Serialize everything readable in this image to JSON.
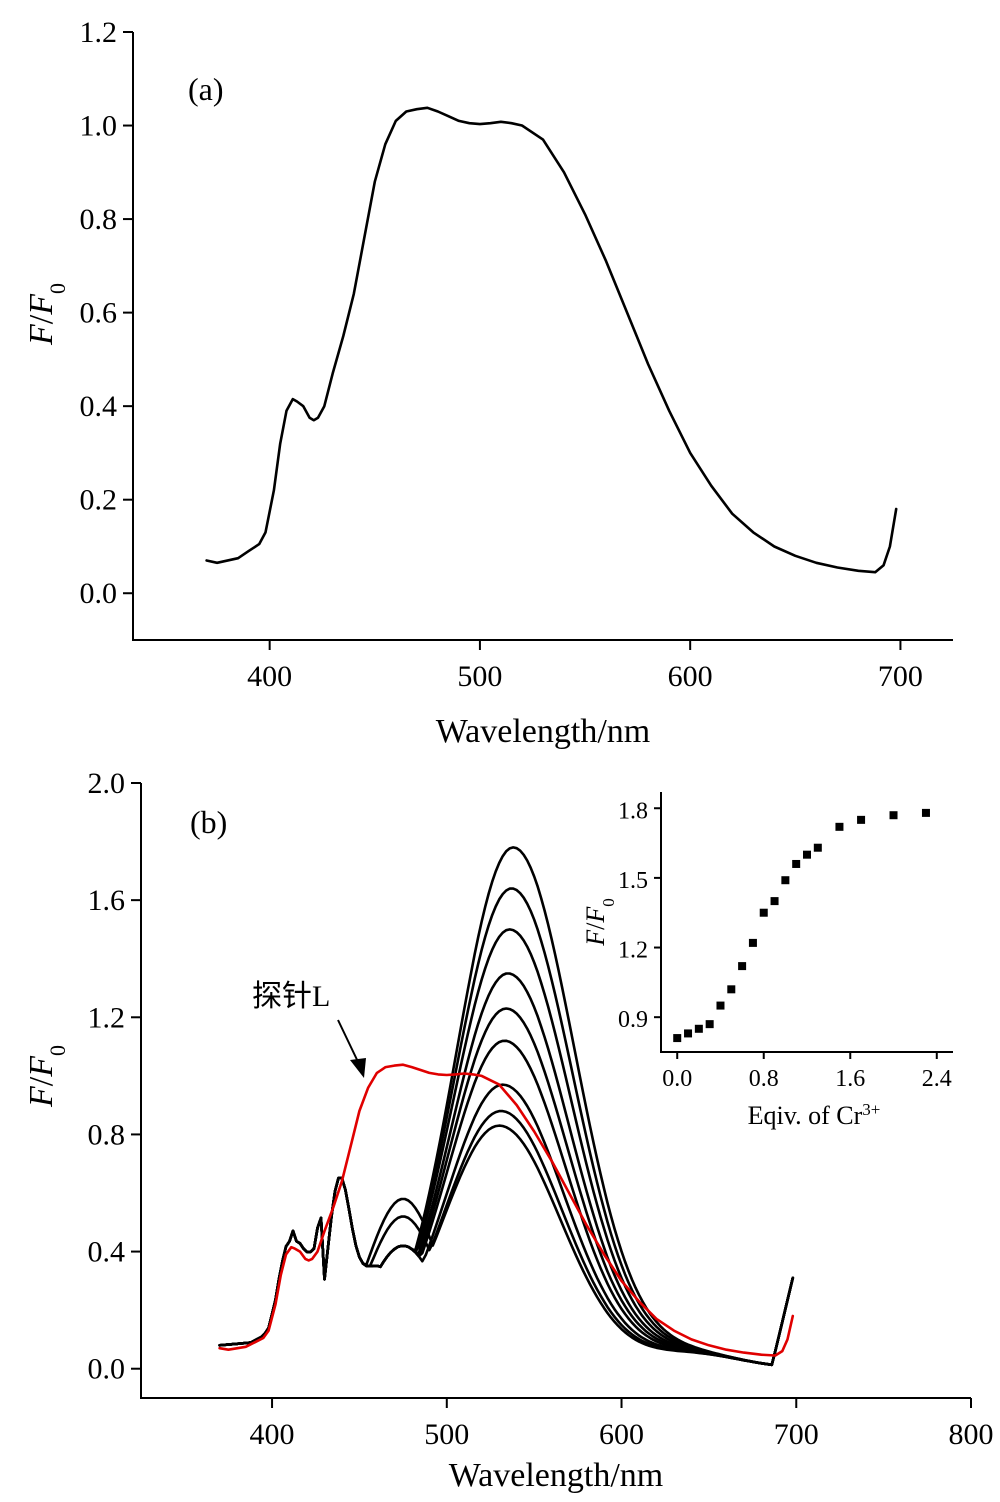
{
  "figure": {
    "panel_a_label": "(a)",
    "panel_b_label": "(b)",
    "annotation": "探针L",
    "colors": {
      "axes": "#000000",
      "cr_series": "#000000",
      "probe_series": "#e00000",
      "background": "#ffffff"
    }
  },
  "chart_data": [
    {
      "id": "a",
      "type": "line",
      "title": "",
      "xlabel": "Wavelength/nm",
      "ylabel": "F/F0",
      "ylabel_parts": [
        "F",
        "/",
        "F",
        "0"
      ],
      "xlim": [
        335,
        725
      ],
      "ylim": [
        -0.1,
        1.2
      ],
      "xticks": [
        400,
        500,
        600,
        700
      ],
      "yticks": [
        0.0,
        0.2,
        0.4,
        0.6,
        0.8,
        1.0,
        1.2
      ],
      "ytick_labels": [
        "0.0",
        "0.2",
        "0.4",
        "0.6",
        "0.8",
        "1.0",
        "1.2"
      ],
      "grid": false,
      "series": [
        {
          "x": [
            370,
            375,
            385,
            390,
            395,
            398,
            402,
            405,
            408,
            411,
            413,
            416,
            419,
            421,
            423,
            426,
            430,
            435,
            440,
            445,
            450,
            455,
            460,
            465,
            470,
            475,
            480,
            485,
            490,
            495,
            500,
            505,
            510,
            515,
            520,
            530,
            540,
            550,
            560,
            570,
            580,
            590,
            600,
            610,
            620,
            630,
            640,
            650,
            660,
            670,
            680,
            688,
            692,
            695,
            698
          ],
          "y": [
            0.07,
            0.065,
            0.075,
            0.09,
            0.105,
            0.13,
            0.22,
            0.32,
            0.39,
            0.415,
            0.41,
            0.4,
            0.375,
            0.37,
            0.375,
            0.4,
            0.47,
            0.55,
            0.64,
            0.76,
            0.88,
            0.96,
            1.01,
            1.03,
            1.035,
            1.038,
            1.03,
            1.02,
            1.01,
            1.005,
            1.003,
            1.005,
            1.008,
            1.005,
            1.0,
            0.97,
            0.9,
            0.81,
            0.71,
            0.6,
            0.49,
            0.39,
            0.3,
            0.23,
            0.17,
            0.13,
            0.1,
            0.08,
            0.065,
            0.055,
            0.048,
            0.045,
            0.06,
            0.1,
            0.18
          ]
        }
      ]
    },
    {
      "id": "b",
      "type": "line",
      "title": "",
      "xlabel": "Wavelength/nm",
      "ylabel": "F/F0",
      "ylabel_parts": [
        "F",
        "/",
        "F",
        "0"
      ],
      "xlim": [
        325,
        800
      ],
      "ylim": [
        -0.1,
        2.0
      ],
      "xticks": [
        400,
        500,
        600,
        700,
        800
      ],
      "yticks": [
        0.0,
        0.4,
        0.8,
        1.2,
        1.6,
        2.0
      ],
      "ytick_labels": [
        "0.0",
        "0.4",
        "0.8",
        "1.2",
        "1.6",
        "2.0"
      ],
      "grid": false,
      "cr_peaks": [
        0.83,
        0.88,
        0.97,
        1.12,
        1.23,
        1.35,
        1.5,
        1.64,
        1.78
      ],
      "probe_series": {
        "x": [
          370,
          375,
          385,
          390,
          395,
          398,
          402,
          405,
          408,
          411,
          413,
          416,
          419,
          421,
          423,
          426,
          430,
          435,
          440,
          445,
          450,
          455,
          460,
          465,
          470,
          475,
          480,
          485,
          490,
          495,
          500,
          505,
          510,
          515,
          520,
          530,
          540,
          550,
          560,
          570,
          580,
          590,
          600,
          610,
          620,
          630,
          640,
          650,
          660,
          670,
          680,
          688,
          692,
          695,
          698
        ],
        "y": [
          0.07,
          0.065,
          0.075,
          0.09,
          0.105,
          0.13,
          0.22,
          0.32,
          0.39,
          0.415,
          0.41,
          0.4,
          0.375,
          0.37,
          0.375,
          0.4,
          0.47,
          0.55,
          0.64,
          0.76,
          0.88,
          0.96,
          1.01,
          1.03,
          1.035,
          1.038,
          1.03,
          1.02,
          1.01,
          1.005,
          1.003,
          1.005,
          1.008,
          1.005,
          1.0,
          0.97,
          0.9,
          0.81,
          0.71,
          0.6,
          0.49,
          0.39,
          0.3,
          0.23,
          0.17,
          0.13,
          0.1,
          0.08,
          0.065,
          0.055,
          0.048,
          0.045,
          0.06,
          0.1,
          0.18
        ]
      }
    },
    {
      "id": "b-inset",
      "type": "scatter",
      "title": "",
      "xlabel": "Eqiv. of Cr",
      "xlabel_sup": "3+",
      "ylabel": "F/F0",
      "ylabel_parts": [
        "F",
        "/",
        "F",
        "0"
      ],
      "xlim": [
        -0.15,
        2.55
      ],
      "ylim": [
        0.75,
        1.87
      ],
      "xticks": [
        0.0,
        0.8,
        1.6,
        2.4
      ],
      "xtick_labels": [
        "0.0",
        "0.8",
        "1.6",
        "2.4"
      ],
      "yticks": [
        0.9,
        1.2,
        1.5,
        1.8
      ],
      "ytick_labels": [
        "0.9",
        "1.2",
        "1.5",
        "1.8"
      ],
      "grid": false,
      "x": [
        0.0,
        0.1,
        0.2,
        0.3,
        0.4,
        0.5,
        0.6,
        0.7,
        0.8,
        0.9,
        1.0,
        1.1,
        1.2,
        1.3,
        1.5,
        1.7,
        2.0,
        2.3
      ],
      "y": [
        0.81,
        0.83,
        0.85,
        0.87,
        0.95,
        1.02,
        1.12,
        1.22,
        1.35,
        1.4,
        1.49,
        1.56,
        1.6,
        1.63,
        1.72,
        1.75,
        1.77,
        1.78
      ]
    }
  ]
}
